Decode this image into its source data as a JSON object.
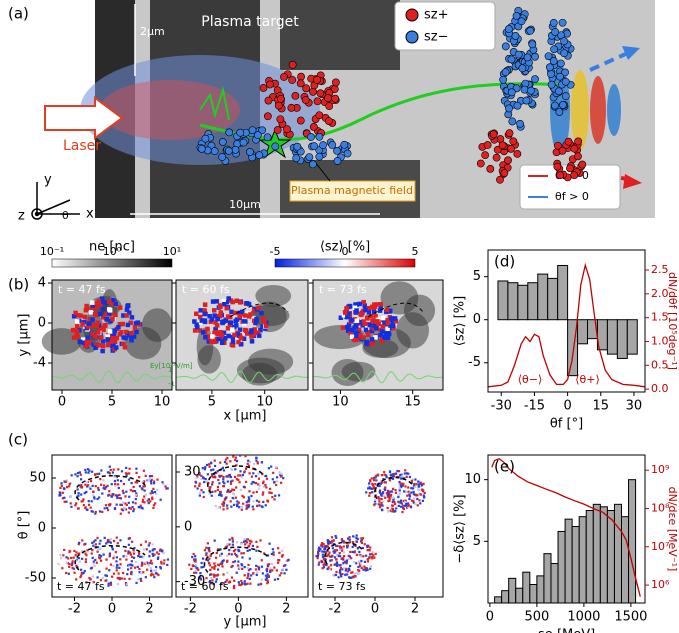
{
  "panel_a": {
    "label": "(a)",
    "target": "Plasma target",
    "thickness": "2μm",
    "laser": "Laser",
    "field": "Plasma magnetic field",
    "length": "10μm",
    "legend": [
      "sz+",
      "sz−"
    ],
    "angle_legend": [
      "θf < 0",
      "θf > 0"
    ],
    "axes": [
      "y",
      "z",
      "x",
      "θ"
    ]
  },
  "panel_b": {
    "label": "(b)",
    "ne_label": "ne [nc]",
    "ne_ticks": [
      "10⁻¹",
      "10⁰",
      "10¹"
    ],
    "sz_label": "⟨sz⟩ [%]",
    "sz_ticks": [
      -5,
      0,
      5
    ],
    "ylabel": "y [μm]",
    "xlabel": "x [μm]",
    "field_label": "Ey[10¹²V/m]",
    "field_ticks": [
      1,
      -1
    ],
    "ylim": [
      -6.7,
      4.3
    ],
    "yticks": [
      4,
      0,
      -4
    ],
    "plots": [
      {
        "time": "t = 47 fs",
        "xlim": [
          -1,
          11
        ],
        "xticks": [
          0,
          5,
          10
        ]
      },
      {
        "time": "t = 60 fs",
        "xlim": [
          1.6,
          14.1
        ],
        "xticks": [
          5,
          10
        ]
      },
      {
        "time": "t = 73 fs",
        "xlim": [
          8.1,
          17.1
        ],
        "xticks": [
          10,
          15
        ]
      }
    ]
  },
  "panel_c": {
    "label": "(c)",
    "ylabel": "θ [°]",
    "xlabel": "y [μm]",
    "plots": [
      {
        "time": "t = 47 fs",
        "xlim": [
          -3.2,
          3.2
        ],
        "xticks": [
          -2,
          0,
          2
        ],
        "ylim": [
          -69,
          73
        ],
        "yticks": [
          50,
          0,
          -50
        ]
      },
      {
        "time": "t = 60 fs",
        "xlim": [
          -2.6,
          2.9
        ],
        "xticks": [
          -2,
          0,
          2
        ],
        "ylim": [
          -38.4,
          39.3
        ],
        "yticks": [
          30,
          0,
          -30
        ]
      },
      {
        "time": "t = 73 fs",
        "xlim": [
          -3.1,
          3.4
        ],
        "xticks": [
          -2,
          0,
          2
        ]
      }
    ]
  },
  "chart_data": [
    {
      "type": "histogram",
      "panel_label": "(d)",
      "xlabel": "θf [°]",
      "ylabel": "⟨sz⟩ [%]",
      "y2label": "dN/dθf [10⁵deg⁻¹]",
      "bins": [
        -31.5,
        -27,
        -22.5,
        -18,
        -13.5,
        -9,
        -4.5,
        0,
        4.5,
        9,
        13.5,
        18,
        22.5,
        27,
        31.5
      ],
      "values": [
        4.5,
        4.3,
        4.0,
        4.3,
        5.3,
        4.8,
        6.3,
        -6.5,
        -2.8,
        -2.2,
        -3.5,
        -4.0,
        -4.5,
        -4.0
      ],
      "color": "#a6a6a6",
      "xlim": [
        -36,
        35
      ],
      "xticks": [
        -30,
        -15,
        0,
        15,
        30
      ],
      "ylim": [
        -8.4,
        8.1
      ],
      "yticks": [
        -5,
        0,
        5
      ],
      "y2lim": [
        -0.06,
        2.92
      ],
      "y2ticks": [
        {
          "value": 0,
          "label": "0.0"
        },
        {
          "value": 0.5,
          "label": "0.5"
        },
        {
          "value": 1,
          "label": "1.0"
        },
        {
          "value": 1.5,
          "label": "1.5"
        },
        {
          "value": 2,
          "label": "2.0"
        },
        {
          "value": 2.5,
          "label": "2.5"
        }
      ],
      "curve": {
        "axis": "y2",
        "color": "#c00000",
        "x": [
          -36,
          -30,
          -27,
          -24,
          -21,
          -19,
          -17,
          -15,
          -13,
          -11,
          -8,
          -5,
          -2,
          0,
          2,
          4,
          6,
          8,
          10,
          12,
          14,
          17,
          20,
          25,
          30,
          35
        ],
        "values": [
          0.05,
          0.08,
          0.15,
          0.5,
          0.95,
          1.1,
          1.0,
          1.15,
          1.1,
          0.7,
          0.3,
          0.1,
          0.1,
          0.2,
          0.6,
          1.3,
          2.2,
          2.6,
          2.3,
          1.6,
          0.9,
          0.4,
          0.2,
          0.1,
          0.08,
          0.05
        ]
      },
      "annotations": [
        "⟨θ−⟩",
        "⟨θ+⟩"
      ]
    },
    {
      "type": "histogram",
      "panel_label": "(e)",
      "xlabel": "εe [MeV]",
      "ylabel": "−δ⟨sz⟩ [%]",
      "y2label": "dN/dεe [MeV⁻¹]",
      "bins": [
        50,
        125,
        200,
        275,
        350,
        425,
        500,
        575,
        650,
        725,
        800,
        875,
        950,
        1025,
        1100,
        1175,
        1250,
        1325,
        1400,
        1475,
        1550
      ],
      "values": [
        0.5,
        1.0,
        2.0,
        1.2,
        2.5,
        1.5,
        2.2,
        4.0,
        3.2,
        5.8,
        6.8,
        6.2,
        7.0,
        7.5,
        8.0,
        7.8,
        7.5,
        8.0,
        7.0,
        10.0
      ],
      "color": "#a6a6a6",
      "xlim": [
        -20,
        1650
      ],
      "xticks": [
        0,
        500,
        1000,
        1500
      ],
      "ylim": [
        0,
        12
      ],
      "yticks": [
        5,
        10
      ],
      "y2log": true,
      "y2lim": [
        340000,
        2500000000
      ],
      "y2ticks": [
        {
          "value": 1000000,
          "label": "10⁶"
        },
        {
          "value": 10000000,
          "label": "10⁷"
        },
        {
          "value": 100000000,
          "label": "10⁸"
        },
        {
          "value": 1000000000,
          "label": "10⁹"
        }
      ],
      "curve": {
        "axis": "y2",
        "color": "#c00000",
        "x": [
          20,
          50,
          100,
          150,
          200,
          300,
          400,
          500,
          600,
          700,
          800,
          900,
          1000,
          1100,
          1200,
          1300,
          1400,
          1450,
          1500,
          1550,
          1600
        ],
        "values": [
          1200000000,
          1800000000,
          2000000000,
          1600000000,
          1100000000,
          700000000,
          500000000,
          400000000,
          320000000,
          260000000,
          200000000,
          160000000,
          130000000,
          100000000,
          80000000,
          50000000,
          25000000,
          15000000,
          5000000,
          1500000,
          500000
        ]
      }
    }
  ]
}
